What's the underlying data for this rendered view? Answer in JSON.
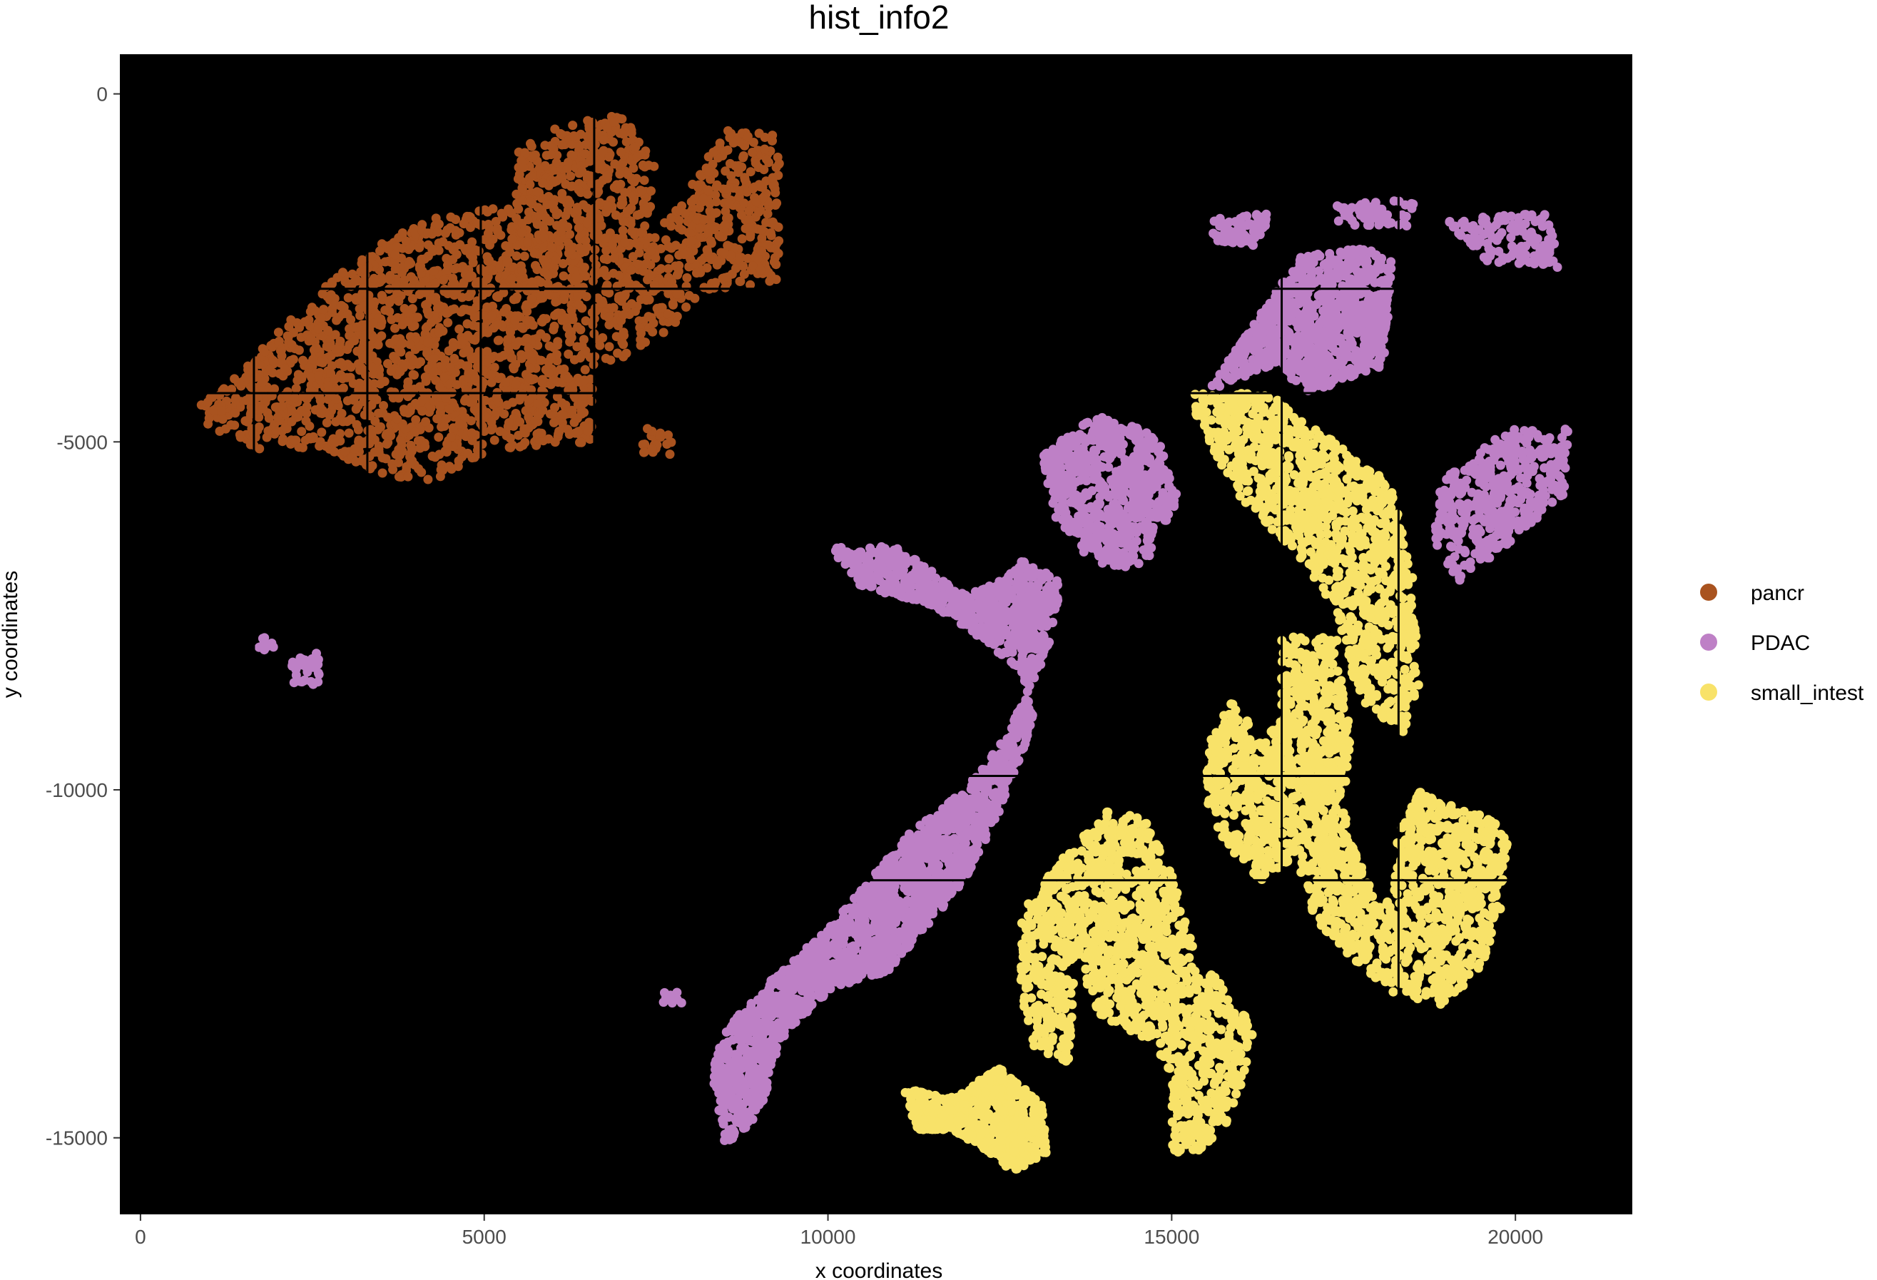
{
  "chart_data": {
    "type": "scatter",
    "title": "hist_info2",
    "xlabel": "x coordinates",
    "ylabel": "y coordinates",
    "xlim": [
      -300,
      21700
    ],
    "ylim": [
      -16100,
      570
    ],
    "x_ticks": [
      0,
      5000,
      10000,
      15000,
      20000
    ],
    "x_tick_labels": [
      "0",
      "5000",
      "10000",
      "15000",
      "20000"
    ],
    "y_ticks": [
      0,
      -5000,
      -10000,
      -15000
    ],
    "y_tick_labels": [
      "0",
      "-5000",
      "-10000",
      "-15000"
    ],
    "background": "#000000",
    "grid": false,
    "legend_position": "right",
    "legend": [
      {
        "label": "pancr",
        "color": "#A9531F"
      },
      {
        "label": "PDAC",
        "color": "#BE80C6"
      },
      {
        "label": "small_intest",
        "color": "#F8E269"
      }
    ],
    "series": [
      {
        "name": "pancr",
        "color": "#A9531F",
        "regions": [
          {
            "polygon": [
              [
                1250,
                -4200
              ],
              [
                2500,
                -2900
              ],
              [
                3400,
                -2200
              ],
              [
                4200,
                -1800
              ],
              [
                5400,
                -1600
              ],
              [
                5500,
                -800
              ],
              [
                6100,
                -400
              ],
              [
                7100,
                -300
              ],
              [
                7500,
                -1100
              ],
              [
                7400,
                -2100
              ],
              [
                8000,
                -1300
              ],
              [
                8500,
                -500
              ],
              [
                9300,
                -600
              ],
              [
                9300,
                -2700
              ],
              [
                8100,
                -2900
              ],
              [
                7600,
                -3500
              ],
              [
                6600,
                -4000
              ],
              [
                6600,
                -5000
              ],
              [
                5200,
                -5100
              ],
              [
                4200,
                -5600
              ],
              [
                3300,
                -5400
              ],
              [
                2700,
                -5100
              ],
              [
                1700,
                -5100
              ],
              [
                1000,
                -4800
              ],
              [
                800,
                -4500
              ]
            ],
            "points": 2600
          },
          {
            "polygon": [
              [
                7300,
                -4800
              ],
              [
                7800,
                -4800
              ],
              [
                7700,
                -5200
              ],
              [
                7300,
                -5200
              ]
            ],
            "points": 20
          }
        ]
      },
      {
        "name": "PDAC",
        "color": "#BE80C6",
        "regions": [
          {
            "polygon": [
              [
                15500,
                -4300
              ],
              [
                16200,
                -3300
              ],
              [
                16900,
                -2300
              ],
              [
                17800,
                -2200
              ],
              [
                18200,
                -2400
              ],
              [
                18100,
                -3900
              ],
              [
                17000,
                -4300
              ],
              [
                16500,
                -3900
              ]
            ],
            "points": 900
          },
          {
            "polygon": [
              [
                15600,
                -1800
              ],
              [
                16400,
                -1700
              ],
              [
                16300,
                -2200
              ],
              [
                15600,
                -2100
              ]
            ],
            "points": 70
          },
          {
            "polygon": [
              [
                17400,
                -1600
              ],
              [
                18600,
                -1500
              ],
              [
                18500,
                -1900
              ],
              [
                17400,
                -1900
              ]
            ],
            "points": 60
          },
          {
            "polygon": [
              [
                19000,
                -1800
              ],
              [
                20500,
                -1700
              ],
              [
                20700,
                -2500
              ],
              [
                19500,
                -2400
              ]
            ],
            "points": 130
          },
          {
            "polygon": [
              [
                13100,
                -5200
              ],
              [
                13900,
                -4600
              ],
              [
                14800,
                -4900
              ],
              [
                15100,
                -5800
              ],
              [
                14600,
                -6800
              ],
              [
                13900,
                -6800
              ],
              [
                13300,
                -6100
              ]
            ],
            "points": 620
          },
          {
            "polygon": [
              [
                10000,
                -6500
              ],
              [
                11000,
                -6500
              ],
              [
                12000,
                -7200
              ],
              [
                12500,
                -7000
              ],
              [
                12800,
                -6700
              ],
              [
                13400,
                -7000
              ],
              [
                13200,
                -8000
              ],
              [
                12600,
                -9200
              ],
              [
                12000,
                -10000
              ],
              [
                11200,
                -10600
              ],
              [
                10600,
                -11300
              ],
              [
                10000,
                -12000
              ],
              [
                9200,
                -12700
              ],
              [
                8600,
                -13300
              ],
              [
                8300,
                -14000
              ],
              [
                8500,
                -15100
              ],
              [
                9000,
                -14700
              ],
              [
                9300,
                -13600
              ],
              [
                10000,
                -12900
              ],
              [
                10900,
                -12600
              ],
              [
                12000,
                -11300
              ],
              [
                12500,
                -10300
              ],
              [
                13000,
                -9000
              ],
              [
                12800,
                -8300
              ],
              [
                12200,
                -7800
              ],
              [
                11400,
                -7300
              ],
              [
                10500,
                -7100
              ]
            ],
            "points": 2500
          },
          {
            "polygon": [
              [
                18900,
                -5600
              ],
              [
                19600,
                -5000
              ],
              [
                20000,
                -4800
              ],
              [
                20800,
                -4800
              ],
              [
                20700,
                -5800
              ],
              [
                20100,
                -6300
              ],
              [
                19200,
                -7000
              ],
              [
                18800,
                -6500
              ]
            ],
            "points": 420
          },
          {
            "polygon": [
              [
                2200,
                -8100
              ],
              [
                2600,
                -8000
              ],
              [
                2600,
                -8500
              ],
              [
                2200,
                -8500
              ]
            ],
            "points": 35
          },
          {
            "polygon": [
              [
                1700,
                -7800
              ],
              [
                1950,
                -7800
              ],
              [
                1950,
                -8000
              ],
              [
                1700,
                -8000
              ]
            ],
            "points": 10
          },
          {
            "polygon": [
              [
                7600,
                -12900
              ],
              [
                7900,
                -12900
              ],
              [
                7900,
                -13100
              ],
              [
                7600,
                -13100
              ]
            ],
            "points": 8
          }
        ]
      },
      {
        "name": "small_intest",
        "color": "#F8E269",
        "regions": [
          {
            "polygon": [
              [
                15200,
                -4300
              ],
              [
                16400,
                -4300
              ],
              [
                17500,
                -5100
              ],
              [
                18200,
                -5600
              ],
              [
                18500,
                -6900
              ],
              [
                18600,
                -8600
              ],
              [
                18400,
                -9200
              ],
              [
                17700,
                -8700
              ],
              [
                17400,
                -7400
              ],
              [
                16800,
                -6600
              ],
              [
                16000,
                -5800
              ],
              [
                15700,
                -5300
              ]
            ],
            "points": 1100
          },
          {
            "polygon": [
              [
                16600,
                -7800
              ],
              [
                17400,
                -7800
              ],
              [
                17600,
                -9200
              ],
              [
                17500,
                -10300
              ],
              [
                17700,
                -10900
              ],
              [
                18100,
                -11800
              ],
              [
                18300,
                -10600
              ],
              [
                18600,
                -10000
              ],
              [
                19400,
                -10300
              ],
              [
                19900,
                -10600
              ],
              [
                19800,
                -11700
              ],
              [
                19500,
                -12600
              ],
              [
                18900,
                -13100
              ],
              [
                18200,
                -12900
              ],
              [
                17600,
                -12400
              ],
              [
                17100,
                -11900
              ],
              [
                16800,
                -11000
              ],
              [
                16300,
                -11300
              ],
              [
                15800,
                -10800
              ],
              [
                15500,
                -10300
              ],
              [
                15500,
                -9300
              ],
              [
                15900,
                -8700
              ],
              [
                16300,
                -9300
              ],
              [
                16600,
                -9000
              ]
            ],
            "points": 1800
          },
          {
            "polygon": [
              [
                13400,
                -11000
              ],
              [
                14000,
                -10300
              ],
              [
                14600,
                -10400
              ],
              [
                15000,
                -11200
              ],
              [
                15300,
                -12200
              ],
              [
                15800,
                -12900
              ],
              [
                16200,
                -13400
              ],
              [
                16100,
                -14000
              ],
              [
                15800,
                -14800
              ],
              [
                15300,
                -15300
              ],
              [
                15000,
                -15200
              ],
              [
                15000,
                -14200
              ],
              [
                14700,
                -13600
              ],
              [
                14000,
                -13300
              ],
              [
                13600,
                -12500
              ],
              [
                13500,
                -14000
              ],
              [
                13000,
                -13700
              ],
              [
                12800,
                -12900
              ],
              [
                12800,
                -11700
              ]
            ],
            "points": 1400
          },
          {
            "polygon": [
              [
                11100,
                -14300
              ],
              [
                11800,
                -14400
              ],
              [
                12500,
                -14000
              ],
              [
                13100,
                -14500
              ],
              [
                13200,
                -15200
              ],
              [
                12700,
                -15500
              ],
              [
                12200,
                -15100
              ],
              [
                11800,
                -14900
              ],
              [
                11300,
                -14900
              ]
            ],
            "points": 600
          }
        ]
      }
    ]
  }
}
